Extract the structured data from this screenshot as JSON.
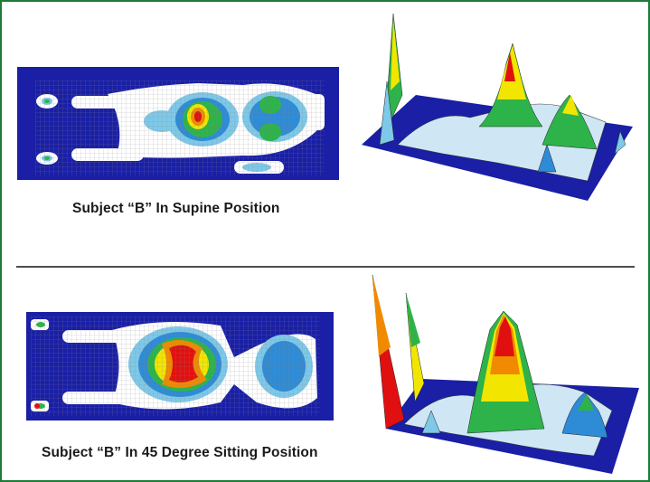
{
  "panels": [
    {
      "caption": "Subject “B” In Supine Position",
      "map_2d": {
        "background": "#1a1fa6",
        "colors": [
          "#ffffff",
          "#7ec8e8",
          "#2e8bd6",
          "#2db34a",
          "#f2e600",
          "#f08a00",
          "#e01010"
        ]
      },
      "map_3d": {
        "background": "#1a1fa6"
      }
    },
    {
      "caption": "Subject “B” In 45 Degree Sitting Position",
      "map_2d": {
        "background": "#1a1fa6"
      },
      "map_3d": {
        "background": "#1a1fa6"
      }
    }
  ]
}
